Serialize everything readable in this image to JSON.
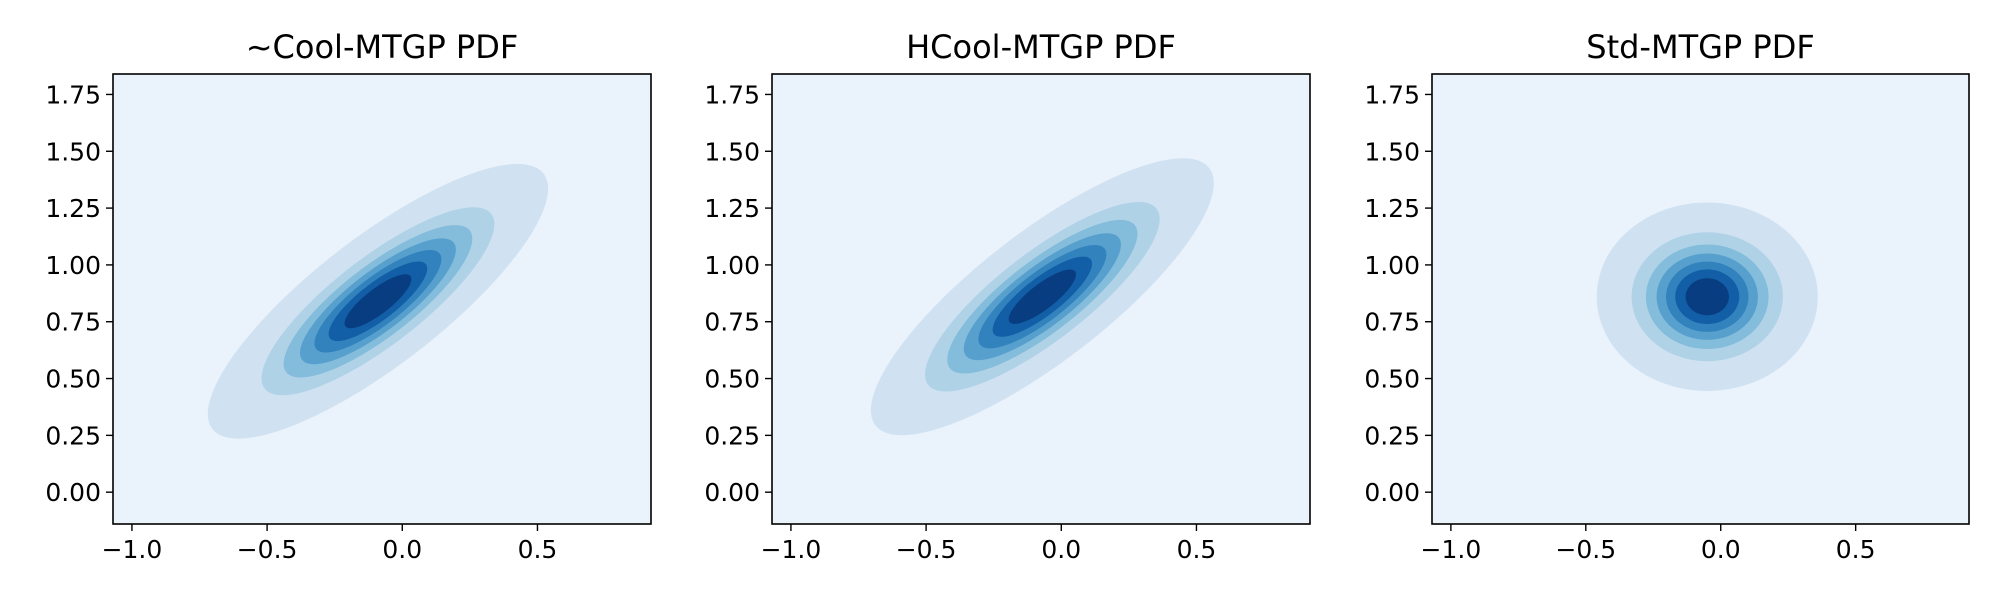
{
  "chart_data": [
    {
      "type": "contour",
      "title": "~Cool-MTGP PDF",
      "xlim": [
        -1.07,
        0.92
      ],
      "ylim": [
        -0.14,
        1.84
      ],
      "xticks": [
        -1.0,
        -0.5,
        0.0,
        0.5
      ],
      "xtick_labels": [
        "−1.0",
        "−0.5",
        "0.0",
        "0.5"
      ],
      "yticks": [
        0.0,
        0.25,
        0.5,
        0.75,
        1.0,
        1.25,
        1.5,
        1.75
      ],
      "ytick_labels": [
        "0.00",
        "0.25",
        "0.50",
        "0.75",
        "1.00",
        "1.25",
        "1.50",
        "1.75"
      ],
      "grid": false,
      "colormap": "Blues",
      "background_color": "#eaf2fb",
      "level_colors": [
        "#d0e2f2",
        "#b0d2e7",
        "#84bcdb",
        "#57a0ce",
        "#3282bd",
        "#135fa7",
        "#083e81"
      ],
      "distribution": {
        "center": [
          -0.09,
          0.84
        ],
        "outer_contour_x_range": [
          -0.7,
          0.56
        ],
        "outer_contour_y_range": [
          0.25,
          1.46
        ],
        "correlation": "positive"
      }
    },
    {
      "type": "contour",
      "title": "HCool-MTGP PDF",
      "xlim": [
        -1.07,
        0.92
      ],
      "ylim": [
        -0.14,
        1.84
      ],
      "xticks": [
        -1.0,
        -0.5,
        0.0,
        0.5
      ],
      "xtick_labels": [
        "−1.0",
        "−0.5",
        "0.0",
        "0.5"
      ],
      "yticks": [
        0.0,
        0.25,
        0.5,
        0.75,
        1.0,
        1.25,
        1.5,
        1.75
      ],
      "ytick_labels": [
        "0.00",
        "0.25",
        "0.50",
        "0.75",
        "1.00",
        "1.25",
        "1.50",
        "1.75"
      ],
      "grid": false,
      "colormap": "Blues",
      "background_color": "#eaf2fb",
      "level_colors": [
        "#d0e2f2",
        "#b0d2e7",
        "#84bcdb",
        "#57a0ce",
        "#3282bd",
        "#135fa7",
        "#083e81"
      ],
      "distribution": {
        "center": [
          -0.07,
          0.86
        ],
        "outer_contour_x_range": [
          -0.7,
          0.57
        ],
        "outer_contour_y_range": [
          0.25,
          1.47
        ],
        "correlation": "positive"
      }
    },
    {
      "type": "contour",
      "title": "Std-MTGP PDF",
      "xlim": [
        -1.07,
        0.92
      ],
      "ylim": [
        -0.14,
        1.84
      ],
      "xticks": [
        -1.0,
        -0.5,
        0.0,
        0.5
      ],
      "xtick_labels": [
        "−1.0",
        "−0.5",
        "0.0",
        "0.5"
      ],
      "yticks": [
        0.0,
        0.25,
        0.5,
        0.75,
        1.0,
        1.25,
        1.5,
        1.75
      ],
      "ytick_labels": [
        "0.00",
        "0.25",
        "0.50",
        "0.75",
        "1.00",
        "1.25",
        "1.50",
        "1.75"
      ],
      "grid": false,
      "colormap": "Blues",
      "background_color": "#eaf2fb",
      "level_colors": [
        "#d0e2f2",
        "#b0d2e7",
        "#84bcdb",
        "#57a0ce",
        "#3282bd",
        "#135fa7",
        "#083e81"
      ],
      "distribution": {
        "center": [
          -0.05,
          0.86
        ],
        "outer_contour_x_range": [
          -0.46,
          0.36
        ],
        "outer_contour_y_range": [
          0.44,
          1.27
        ],
        "correlation": "none"
      }
    }
  ]
}
